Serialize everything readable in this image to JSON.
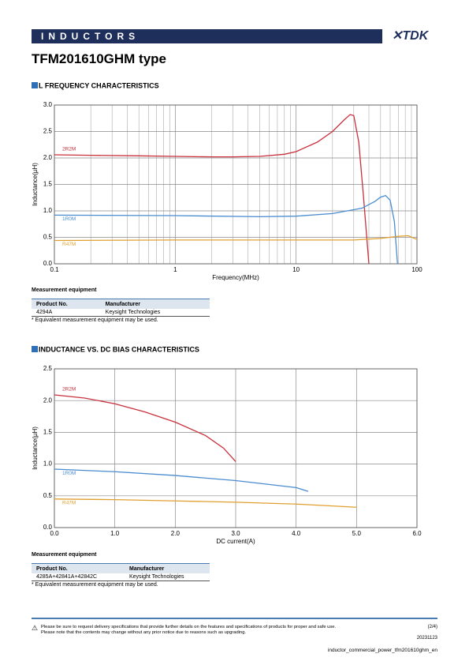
{
  "header": {
    "label": "INDUCTORS",
    "logo": "TDK"
  },
  "title": "TFM201610GHM type",
  "chart_data": [
    {
      "type": "line",
      "title": "L FREQUENCY CHARACTERISTICS",
      "xlabel": "Frequency(MHz)",
      "ylabel": "Inductance(µH)",
      "xscale": "log",
      "xlim": [
        0.1,
        100
      ],
      "xticks": [
        0.1,
        1,
        10,
        100
      ],
      "xminorticks": [
        0.2,
        0.3,
        0.4,
        0.5,
        0.6,
        0.7,
        0.8,
        0.9,
        2,
        3,
        4,
        5,
        6,
        7,
        8,
        9,
        20,
        30,
        40,
        50,
        60,
        70,
        80,
        90
      ],
      "ylim": [
        0,
        3
      ],
      "yticks": [
        {
          "value": 0,
          "label": "0.0"
        },
        0.5,
        {
          "value": 1,
          "label": "1.0"
        },
        1.5,
        {
          "value": 2,
          "label": "2.0"
        },
        2.5,
        {
          "value": 3,
          "label": "3.0"
        }
      ],
      "grid": true,
      "series": [
        {
          "name": "2R2M",
          "color": "#c8303c",
          "x": [
            0.1,
            0.2,
            0.5,
            1,
            2,
            3,
            5,
            8,
            10,
            15,
            20,
            25,
            28,
            30,
            33,
            36,
            40
          ],
          "values": [
            2.06,
            2.05,
            2.04,
            2.03,
            2.02,
            2.02,
            2.03,
            2.07,
            2.12,
            2.3,
            2.5,
            2.72,
            2.82,
            2.8,
            2.3,
            1.3,
            0.0
          ]
        },
        {
          "name": "1R0M",
          "color": "#4a8cd0",
          "x": [
            0.1,
            1,
            5,
            10,
            20,
            35,
            45,
            50,
            55,
            60,
            65,
            69
          ],
          "values": [
            0.92,
            0.91,
            0.89,
            0.9,
            0.95,
            1.05,
            1.18,
            1.26,
            1.29,
            1.2,
            0.8,
            0.0
          ]
        },
        {
          "name": "R47M",
          "color": "#e0a030",
          "x": [
            0.1,
            1,
            10,
            30,
            50,
            70,
            85,
            100
          ],
          "values": [
            0.44,
            0.45,
            0.45,
            0.45,
            0.48,
            0.52,
            0.53,
            0.46
          ]
        }
      ]
    },
    {
      "type": "line",
      "title": "INDUCTANCE VS. DC BIAS CHARACTERISTICS",
      "xlabel": "DC current(A)",
      "ylabel": "Inductance(µH)",
      "xscale": "linear",
      "xlim": [
        0,
        6
      ],
      "xticks": [
        {
          "value": 0,
          "label": "0.0"
        },
        {
          "value": 1,
          "label": "1.0"
        },
        {
          "value": 2,
          "label": "2.0"
        },
        {
          "value": 3,
          "label": "3.0"
        },
        {
          "value": 4,
          "label": "4.0"
        },
        {
          "value": 5,
          "label": "5.0"
        },
        {
          "value": 6,
          "label": "6.0"
        }
      ],
      "ylim": [
        0,
        2.5
      ],
      "yticks": [
        {
          "value": 0,
          "label": "0.0"
        },
        0.5,
        {
          "value": 1,
          "label": "1.0"
        },
        1.5,
        {
          "value": 2,
          "label": "2.0"
        },
        2.5
      ],
      "grid": true,
      "series": [
        {
          "name": "2R2M",
          "color": "#c8303c",
          "x": [
            0,
            0.5,
            1,
            1.5,
            2,
            2.5,
            2.8,
            3.0
          ],
          "values": [
            2.09,
            2.04,
            1.95,
            1.82,
            1.66,
            1.45,
            1.25,
            1.04
          ]
        },
        {
          "name": "1R0M",
          "color": "#4a8cd0",
          "x": [
            0,
            1,
            2,
            3,
            4,
            4.2
          ],
          "values": [
            0.92,
            0.88,
            0.82,
            0.74,
            0.63,
            0.57
          ]
        },
        {
          "name": "R47M",
          "color": "#e0a030",
          "x": [
            0,
            1,
            2,
            3,
            4,
            5
          ],
          "values": [
            0.45,
            0.44,
            0.42,
            0.4,
            0.37,
            0.32
          ]
        }
      ]
    }
  ],
  "measurements": [
    {
      "heading": "Measurement equipment",
      "columns": [
        "Product No.",
        "Manufacturer"
      ],
      "rows": [
        [
          "4294A",
          "Keysight Technologies"
        ]
      ],
      "note": "* Equivalent measurement equipment may be used."
    },
    {
      "heading": "Measurement equipment",
      "columns": [
        "Product No.",
        "Manufacturer"
      ],
      "rows": [
        [
          "4285A+42841A+42842C",
          "Keysight Technologies"
        ]
      ],
      "note": "* Equivalent measurement equipment may be used."
    }
  ],
  "footer": {
    "notice": [
      "Please be sure to request delivery specifications that provide further details on the features and specifications of products for proper and safe use.",
      "Please note that the contents may change without any prior notice due to reasons such as upgrading."
    ],
    "page": "(2/4)",
    "date": "20231123",
    "file": "inductor_commercial_power_tfm201610ghm_en"
  }
}
